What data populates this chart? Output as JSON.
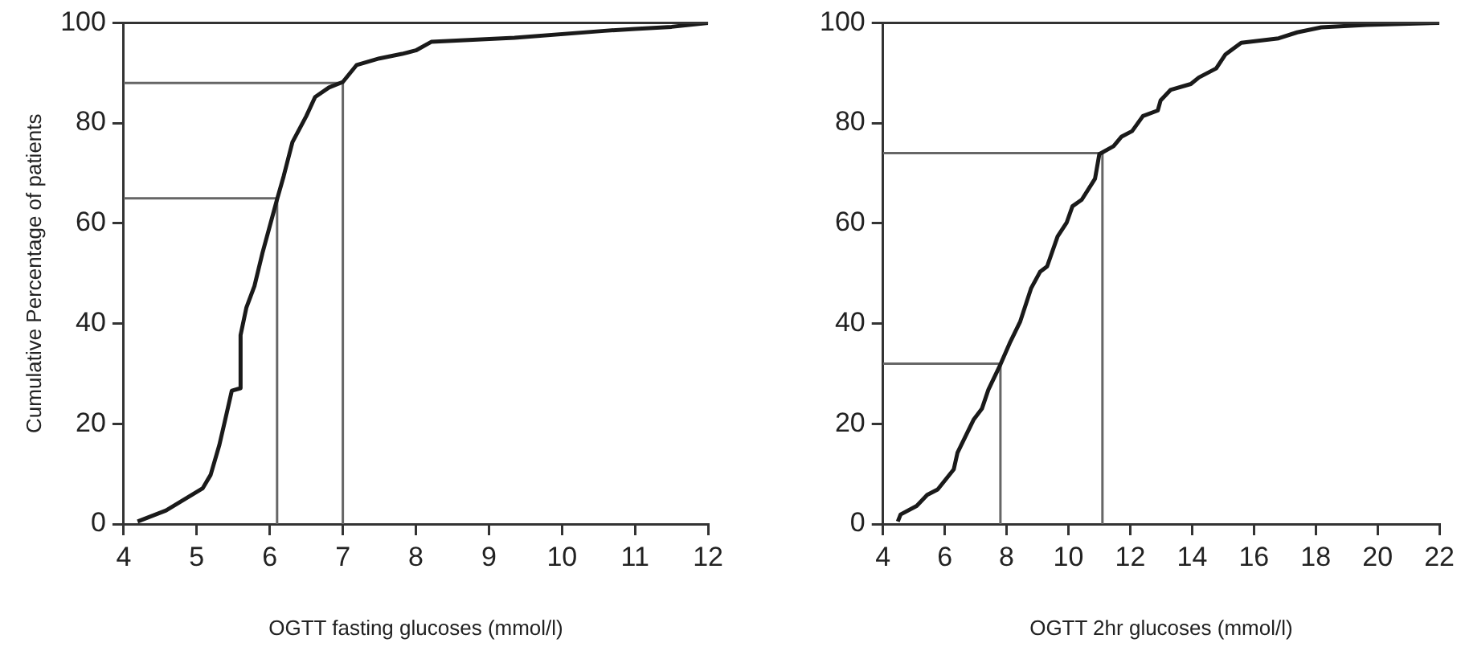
{
  "chart_data": [
    {
      "type": "line",
      "xlabel": "OGTT fasting glucoses (mmol/l)",
      "ylabel": "Cumulative Percentage of patients",
      "xlim": [
        4,
        12
      ],
      "ylim": [
        0,
        100
      ],
      "xticks": [
        4,
        5,
        6,
        7,
        8,
        9,
        10,
        11,
        12
      ],
      "yticks": [
        0,
        20,
        40,
        60,
        80,
        100
      ],
      "grid": false,
      "legend": false,
      "marker": "none",
      "series": [
        {
          "color": "#1a1a1a",
          "x": [
            4.19,
            4.58,
            5.08,
            5.19,
            5.31,
            5.38,
            5.48,
            5.6,
            5.6,
            5.68,
            5.79,
            5.9,
            6.1,
            6.19,
            6.31,
            6.5,
            6.62,
            6.81,
            7.0,
            7.19,
            7.5,
            7.81,
            8.0,
            8.21,
            9.35,
            10.58,
            11,
            11.5,
            12
          ],
          "values": [
            0.5,
            2.7,
            7.1,
            9.8,
            15.8,
            20.2,
            26.6,
            27.1,
            37.7,
            43.2,
            47.5,
            54.1,
            64.8,
            69.4,
            76.2,
            81.4,
            85.2,
            87.1,
            88.2,
            91.6,
            92.9,
            93.8,
            94.5,
            96.2,
            97.0,
            98.4,
            98.8,
            99.2,
            100
          ]
        },
        {
          "color": "#666666",
          "x": [
            4,
            7,
            7
          ],
          "values": [
            88,
            88,
            0
          ]
        },
        {
          "color": "#666666",
          "x": [
            4,
            6.1,
            6.1
          ],
          "values": [
            65,
            65,
            0
          ]
        }
      ]
    },
    {
      "type": "line",
      "xlabel": "OGTT 2hr glucoses (mmol/l)",
      "xlim": [
        4,
        22
      ],
      "ylim": [
        0,
        100
      ],
      "xticks": [
        4,
        6,
        8,
        10,
        12,
        14,
        16,
        18,
        20,
        22
      ],
      "yticks": [
        0,
        20,
        40,
        60,
        80,
        100
      ],
      "grid": false,
      "legend": false,
      "marker": "none",
      "series": [
        {
          "color": "#1a1a1a",
          "x": [
            4.48,
            4.57,
            5.09,
            5.43,
            5.77,
            6.29,
            6.41,
            6.93,
            7.2,
            7.41,
            7.79,
            8.1,
            8.44,
            8.79,
            9.08,
            9.31,
            9.65,
            9.94,
            10.13,
            10.43,
            10.86,
            11.0,
            11.46,
            11.72,
            12.06,
            12.41,
            12.89,
            12.98,
            13.3,
            13.96,
            14.22,
            14.78,
            15.08,
            15.59,
            16.8,
            17.4,
            18.18,
            19.64,
            22
          ],
          "values": [
            0.5,
            1.9,
            3.6,
            5.8,
            6.9,
            10.9,
            14.2,
            20.8,
            23.0,
            26.8,
            31.7,
            36.1,
            40.4,
            47.0,
            50.3,
            51.4,
            57.4,
            60.1,
            63.4,
            64.7,
            68.9,
            73.8,
            75.4,
            77.3,
            78.4,
            81.4,
            82.5,
            84.5,
            86.6,
            87.8,
            89.1,
            90.9,
            93.7,
            96.0,
            96.9,
            98.1,
            99.1,
            99.6,
            100
          ]
        },
        {
          "color": "#666666",
          "x": [
            4,
            11.1,
            11.1
          ],
          "values": [
            74,
            74,
            0
          ]
        },
        {
          "color": "#666666",
          "x": [
            4,
            7.8,
            7.8
          ],
          "values": [
            32,
            32,
            0
          ]
        }
      ]
    }
  ]
}
